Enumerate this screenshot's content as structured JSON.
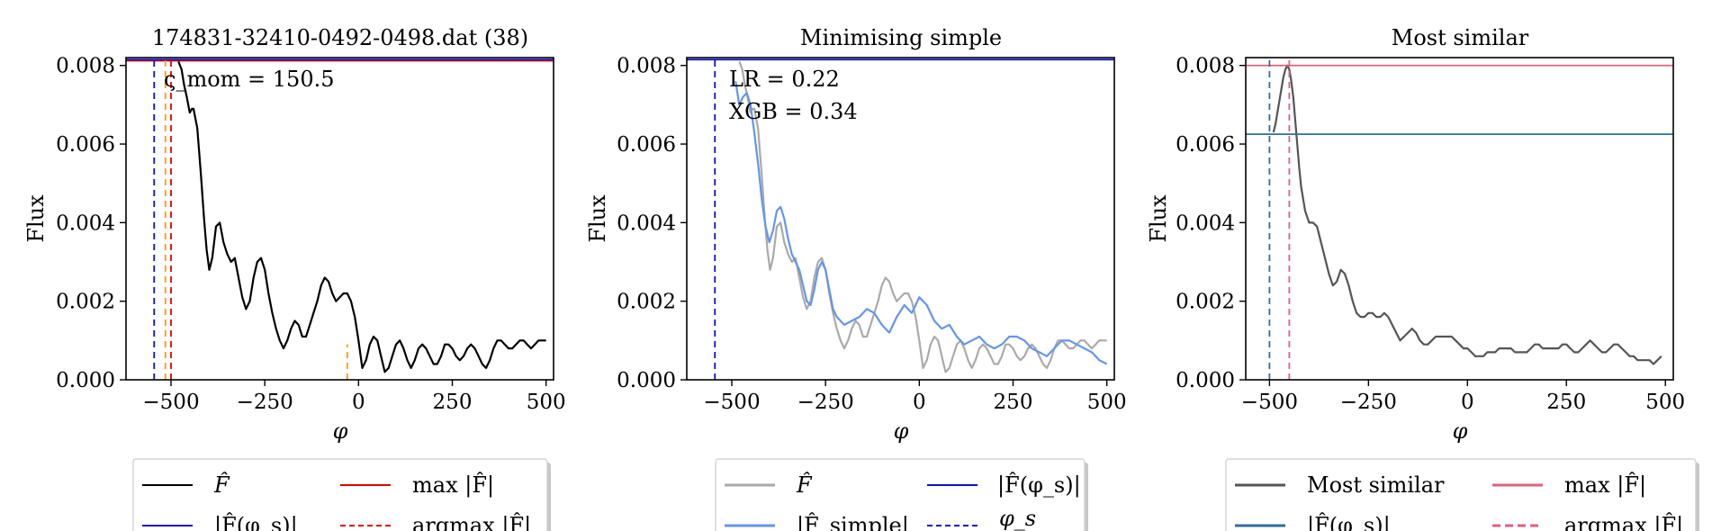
{
  "chart_data": [
    {
      "type": "line",
      "title": "174831-32410-0492-0498.dat (38)",
      "xlabel": "φ",
      "ylabel": "Flux",
      "xlim": [
        -620,
        520
      ],
      "ylim": [
        0,
        0.0082
      ],
      "xticks": [
        -500,
        -250,
        0,
        250,
        500
      ],
      "xtick_labels": [
        "−500",
        "−250",
        "0",
        "250",
        "500"
      ],
      "yticks": [
        0,
        0.002,
        0.004,
        0.006,
        0.008
      ],
      "ytick_labels": [
        "0.000",
        "0.002",
        "0.004",
        "0.006",
        "0.008"
      ],
      "annotations": [
        "ς_mom = 150.5"
      ],
      "series": [
        {
          "name": "F̂",
          "color": "#000000",
          "style": "solid",
          "x": [
            -480,
            -472,
            -465,
            -458,
            -450,
            -444,
            -440,
            -430,
            -420,
            -412,
            -405,
            -398,
            -390,
            -380,
            -370,
            -360,
            -350,
            -340,
            -330,
            -320,
            -310,
            -300,
            -290,
            -280,
            -270,
            -260,
            -250,
            -240,
            -230,
            -220,
            -210,
            -200,
            -190,
            -180,
            -170,
            -160,
            -150,
            -140,
            -130,
            -120,
            -110,
            -100,
            -90,
            -80,
            -70,
            -60,
            -50,
            -40,
            -30,
            -20,
            -10,
            0,
            10,
            20,
            30,
            40,
            50,
            60,
            70,
            80,
            90,
            100,
            110,
            120,
            130,
            140,
            150,
            160,
            170,
            180,
            190,
            200,
            210,
            220,
            230,
            240,
            250,
            260,
            270,
            280,
            290,
            300,
            310,
            320,
            330,
            340,
            350,
            360,
            370,
            380,
            390,
            400,
            410,
            420,
            430,
            440,
            450,
            460,
            470,
            480,
            490,
            500
          ],
          "y": [
            0.0081,
            0.0079,
            0.0075,
            0.0072,
            0.0068,
            0.0069,
            0.0069,
            0.0064,
            0.0052,
            0.0041,
            0.0033,
            0.0028,
            0.0031,
            0.0039,
            0.004,
            0.0035,
            0.0032,
            0.003,
            0.0031,
            0.0026,
            0.0021,
            0.0018,
            0.002,
            0.0026,
            0.003,
            0.0031,
            0.0028,
            0.0022,
            0.0017,
            0.0013,
            0.001,
            0.0008,
            0.001,
            0.0013,
            0.0015,
            0.0014,
            0.0011,
            0.0011,
            0.0014,
            0.0017,
            0.002,
            0.0024,
            0.0026,
            0.0025,
            0.0022,
            0.002,
            0.0021,
            0.0022,
            0.0022,
            0.002,
            0.0016,
            0.001,
            0.0003,
            0.0005,
            0.0009,
            0.0011,
            0.001,
            0.0006,
            0.0002,
            0.0003,
            0.0006,
            0.0009,
            0.001,
            0.0008,
            0.0005,
            0.0003,
            0.0005,
            0.0008,
            0.0009,
            0.0008,
            0.0006,
            0.0004,
            0.0004,
            0.0006,
            0.0009,
            0.0009,
            0.0008,
            0.0006,
            0.0005,
            0.0006,
            0.0008,
            0.0009,
            0.0008,
            0.0006,
            0.0004,
            0.0003,
            0.0005,
            0.0008,
            0.001,
            0.001,
            0.0009,
            0.0008,
            0.0008,
            0.0009,
            0.001,
            0.001,
            0.0009,
            0.0008,
            0.0009,
            0.001,
            0.001,
            0.001
          ]
        },
        {
          "name": "max |F̂|",
          "color": "#e00000",
          "style": "solid",
          "y_const": 0.00812
        },
        {
          "name": "|F̂(φ_s)|",
          "color": "#1010c8",
          "style": "solid",
          "y_const": 0.00815
        },
        {
          "name": "argmax |F̂|",
          "color": "#e00000",
          "style": "dashed",
          "x_const": -500
        },
        {
          "name": "φ_s",
          "color": "#1010c8",
          "style": "dashed",
          "x_const": -545
        },
        {
          "color": "#ff9900",
          "style": "dashed",
          "x_const": -515
        },
        {
          "color": "#ff9900",
          "style": "dashed",
          "x_const": -30,
          "y_top": 0.0009
        }
      ],
      "legend": {
        "position": "below",
        "entries": [
          {
            "label": "F̂",
            "color": "#000000",
            "style": "solid"
          },
          {
            "label": "max |F̂|",
            "color": "#e00000",
            "style": "solid"
          },
          {
            "label": "|F̂(φ_s)|",
            "color": "#1010c8",
            "style": "solid"
          },
          {
            "label": "argmax |F̂|",
            "color": "#e00000",
            "style": "dashed"
          }
        ]
      }
    },
    {
      "type": "line",
      "title": "Minimising simple",
      "xlabel": "φ",
      "ylabel": "Flux",
      "xlim": [
        -620,
        520
      ],
      "ylim": [
        0,
        0.0082
      ],
      "xticks": [
        -500,
        -250,
        0,
        250,
        500
      ],
      "xtick_labels": [
        "−500",
        "−250",
        "0",
        "250",
        "500"
      ],
      "yticks": [
        0,
        0.002,
        0.004,
        0.006,
        0.008
      ],
      "ytick_labels": [
        "0.000",
        "0.002",
        "0.004",
        "0.006",
        "0.008"
      ],
      "annotations": [
        "LR = 0.22",
        "XGB = 0.34"
      ],
      "series": [
        {
          "name": "F̂",
          "color": "#aaaaaa",
          "style": "solid",
          "x": [
            -480,
            -472,
            -465,
            -458,
            -450,
            -444,
            -440,
            -430,
            -420,
            -412,
            -405,
            -398,
            -390,
            -380,
            -370,
            -360,
            -350,
            -340,
            -330,
            -320,
            -310,
            -300,
            -290,
            -280,
            -270,
            -260,
            -250,
            -240,
            -230,
            -220,
            -210,
            -200,
            -190,
            -180,
            -170,
            -160,
            -150,
            -140,
            -130,
            -120,
            -110,
            -100,
            -90,
            -80,
            -70,
            -60,
            -50,
            -40,
            -30,
            -20,
            -10,
            0,
            10,
            20,
            30,
            40,
            50,
            60,
            70,
            80,
            90,
            100,
            110,
            120,
            130,
            140,
            150,
            160,
            170,
            180,
            190,
            200,
            210,
            220,
            230,
            240,
            250,
            260,
            270,
            280,
            290,
            300,
            310,
            320,
            330,
            340,
            350,
            360,
            370,
            380,
            390,
            400,
            410,
            420,
            430,
            440,
            450,
            460,
            470,
            480,
            490,
            500
          ],
          "y": [
            0.0081,
            0.0079,
            0.0075,
            0.0072,
            0.0068,
            0.0069,
            0.0069,
            0.0064,
            0.0052,
            0.0041,
            0.0033,
            0.0028,
            0.0031,
            0.0039,
            0.004,
            0.0035,
            0.0032,
            0.003,
            0.0031,
            0.0026,
            0.0021,
            0.0018,
            0.002,
            0.0026,
            0.003,
            0.0031,
            0.0028,
            0.0022,
            0.0017,
            0.0013,
            0.001,
            0.0008,
            0.001,
            0.0013,
            0.0015,
            0.0014,
            0.0011,
            0.0011,
            0.0014,
            0.0017,
            0.002,
            0.0024,
            0.0026,
            0.0025,
            0.0022,
            0.002,
            0.0021,
            0.0022,
            0.0022,
            0.002,
            0.0016,
            0.001,
            0.0003,
            0.0005,
            0.0009,
            0.0011,
            0.001,
            0.0006,
            0.0002,
            0.0003,
            0.0006,
            0.0009,
            0.001,
            0.0008,
            0.0005,
            0.0003,
            0.0005,
            0.0008,
            0.0009,
            0.0008,
            0.0006,
            0.0004,
            0.0004,
            0.0006,
            0.0009,
            0.0009,
            0.0008,
            0.0006,
            0.0005,
            0.0006,
            0.0008,
            0.0009,
            0.0008,
            0.0006,
            0.0004,
            0.0003,
            0.0005,
            0.0008,
            0.001,
            0.001,
            0.0009,
            0.0008,
            0.0008,
            0.0009,
            0.001,
            0.001,
            0.0009,
            0.0008,
            0.0009,
            0.001,
            0.001,
            0.001
          ]
        },
        {
          "name": "|F̂_simple|",
          "color": "#6495ed",
          "style": "solid",
          "x": [
            -490,
            -480,
            -470,
            -460,
            -450,
            -440,
            -430,
            -420,
            -410,
            -400,
            -390,
            -380,
            -370,
            -360,
            -350,
            -340,
            -330,
            -320,
            -310,
            -300,
            -290,
            -280,
            -270,
            -260,
            -250,
            -240,
            -230,
            -220,
            -210,
            -200,
            -180,
            -160,
            -140,
            -120,
            -100,
            -80,
            -60,
            -40,
            -20,
            0,
            20,
            40,
            60,
            80,
            100,
            120,
            140,
            160,
            180,
            200,
            220,
            240,
            260,
            280,
            300,
            320,
            340,
            360,
            380,
            400,
            420,
            440,
            460,
            480,
            500
          ],
          "y": [
            0.0076,
            0.007,
            0.0072,
            0.0073,
            0.007,
            0.0063,
            0.0055,
            0.0046,
            0.0039,
            0.0035,
            0.0038,
            0.0043,
            0.0044,
            0.0041,
            0.0036,
            0.0032,
            0.003,
            0.0028,
            0.0024,
            0.002,
            0.0019,
            0.0023,
            0.0028,
            0.003,
            0.0028,
            0.0023,
            0.0018,
            0.0016,
            0.0015,
            0.0014,
            0.0015,
            0.0016,
            0.0018,
            0.0017,
            0.0014,
            0.0012,
            0.0016,
            0.0019,
            0.0017,
            0.0021,
            0.0019,
            0.0015,
            0.0013,
            0.0014,
            0.0011,
            0.0009,
            0.001,
            0.0011,
            0.0009,
            0.0008,
            0.0009,
            0.0011,
            0.0011,
            0.001,
            0.0008,
            0.0007,
            0.0006,
            0.0008,
            0.001,
            0.001,
            0.0009,
            0.0008,
            0.0007,
            0.0005,
            0.0004
          ]
        },
        {
          "name": "|F̂(φ_s)|",
          "color": "#1010c8",
          "style": "solid",
          "y_const": 0.00815
        },
        {
          "name": "φ_s",
          "color": "#1010c8",
          "style": "dashed",
          "x_const": -545
        }
      ],
      "legend": {
        "position": "below",
        "entries": [
          {
            "label": "F̂",
            "color": "#aaaaaa",
            "style": "solid"
          },
          {
            "label": "|F̂(φ_s)|",
            "color": "#1010c8",
            "style": "solid"
          },
          {
            "label": "|F̂_simple|",
            "color": "#6495ed",
            "style": "solid"
          },
          {
            "label": "φ_s",
            "color": "#1010c8",
            "style": "dashed"
          }
        ]
      }
    },
    {
      "type": "line",
      "title": "Most similar",
      "xlabel": "φ",
      "ylabel": "Flux",
      "xlim": [
        -560,
        520
      ],
      "ylim": [
        0,
        0.0082
      ],
      "xticks": [
        -500,
        -250,
        0,
        250,
        500
      ],
      "xtick_labels": [
        "−500",
        "−250",
        "0",
        "250",
        "500"
      ],
      "yticks": [
        0,
        0.002,
        0.004,
        0.006,
        0.008
      ],
      "ytick_labels": [
        "0.000",
        "0.002",
        "0.004",
        "0.006",
        "0.008"
      ],
      "series": [
        {
          "name": "Most similar",
          "color": "#555555",
          "style": "solid",
          "x": [
            -490,
            -485,
            -480,
            -475,
            -470,
            -465,
            -460,
            -455,
            -450,
            -445,
            -440,
            -435,
            -430,
            -425,
            -420,
            -410,
            -400,
            -390,
            -380,
            -370,
            -360,
            -350,
            -340,
            -330,
            -320,
            -310,
            -300,
            -290,
            -280,
            -270,
            -260,
            -250,
            -240,
            -230,
            -220,
            -210,
            -200,
            -190,
            -180,
            -170,
            -160,
            -150,
            -140,
            -130,
            -120,
            -110,
            -100,
            -90,
            -80,
            -70,
            -60,
            -50,
            -40,
            -30,
            -20,
            -10,
            0,
            10,
            20,
            30,
            40,
            50,
            60,
            70,
            80,
            90,
            100,
            110,
            120,
            130,
            140,
            150,
            160,
            170,
            180,
            190,
            200,
            210,
            220,
            230,
            240,
            250,
            260,
            270,
            280,
            290,
            300,
            310,
            320,
            330,
            340,
            350,
            360,
            370,
            380,
            390,
            400,
            410,
            420,
            430,
            440,
            450,
            460,
            470,
            480,
            490
          ],
          "y": [
            0.0063,
            0.0065,
            0.0068,
            0.0071,
            0.0074,
            0.0077,
            0.0079,
            0.008,
            0.0079,
            0.0076,
            0.0072,
            0.0066,
            0.006,
            0.0054,
            0.0049,
            0.0043,
            0.004,
            0.004,
            0.0039,
            0.0035,
            0.0031,
            0.0027,
            0.0024,
            0.0025,
            0.0028,
            0.0027,
            0.0024,
            0.002,
            0.0017,
            0.0016,
            0.0016,
            0.0017,
            0.0017,
            0.0016,
            0.0016,
            0.0017,
            0.0016,
            0.0014,
            0.0012,
            0.001,
            0.0011,
            0.0012,
            0.0013,
            0.0012,
            0.001,
            0.0009,
            0.0009,
            0.001,
            0.0011,
            0.0011,
            0.0011,
            0.0011,
            0.0011,
            0.001,
            0.0009,
            0.0008,
            0.0008,
            0.0007,
            0.0006,
            0.0006,
            0.0006,
            0.0007,
            0.0007,
            0.0007,
            0.0008,
            0.0008,
            0.0008,
            0.0008,
            0.0007,
            0.0007,
            0.0007,
            0.0007,
            0.0008,
            0.0009,
            0.0009,
            0.0008,
            0.0008,
            0.0008,
            0.0008,
            0.0008,
            0.0009,
            0.0009,
            0.0008,
            0.0007,
            0.0007,
            0.0008,
            0.0009,
            0.001,
            0.0009,
            0.0008,
            0.0007,
            0.0007,
            0.0008,
            0.0009,
            0.0009,
            0.0008,
            0.0007,
            0.0006,
            0.0006,
            0.0005,
            0.0005,
            0.0005,
            0.0005,
            0.0004,
            0.0005,
            0.0006
          ]
        },
        {
          "name": "max |F̂|",
          "color": "#e0607e",
          "style": "solid",
          "y_const": 0.008
        },
        {
          "name": "|F̂(φ_s)|",
          "color": "#2e6e9e",
          "style": "solid",
          "y_const": 0.00625
        },
        {
          "name": "argmax |F̂|",
          "color": "#e0607e",
          "style": "dashed",
          "x_const": -450
        },
        {
          "color": "#2e6e9e",
          "style": "dashed",
          "x_const": -500
        }
      ],
      "legend": {
        "position": "below",
        "entries": [
          {
            "label": "Most similar",
            "color": "#555555",
            "style": "solid"
          },
          {
            "label": "max |F̂|",
            "color": "#e0607e",
            "style": "solid"
          },
          {
            "label": "|F̂(φ_s)|",
            "color": "#2e6e9e",
            "style": "solid"
          },
          {
            "label": "argmax |F̂|",
            "color": "#e0607e",
            "style": "dashed"
          }
        ]
      }
    }
  ]
}
